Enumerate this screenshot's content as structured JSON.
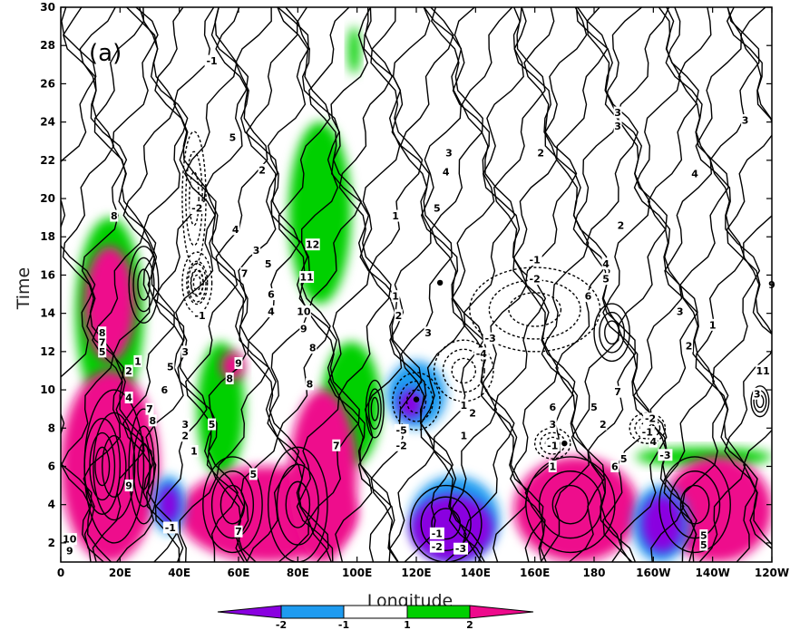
{
  "chart_data": {
    "type": "heatmap",
    "panel_label": "(a)",
    "xlabel": "Longitude",
    "ylabel": "Time",
    "x_ticks": [
      "0",
      "20E",
      "40E",
      "60E",
      "80E",
      "100E",
      "120E",
      "140E",
      "160E",
      "180",
      "160W",
      "140W",
      "120W"
    ],
    "x_tick_lon": [
      0,
      20,
      40,
      60,
      80,
      100,
      120,
      140,
      160,
      180,
      200,
      220,
      240
    ],
    "y_ticks": [
      "2",
      "4",
      "6",
      "8",
      "10",
      "12",
      "14",
      "16",
      "18",
      "20",
      "22",
      "24",
      "26",
      "28",
      "30"
    ],
    "y_tick_vals": [
      2,
      4,
      6,
      8,
      10,
      12,
      14,
      16,
      18,
      20,
      22,
      24,
      26,
      28,
      30
    ],
    "xlim": [
      0,
      240
    ],
    "ylim": [
      1,
      30
    ],
    "colorbar": {
      "labels": [
        "-2",
        "-1",
        "1",
        "2"
      ],
      "colors": [
        "#8a00e0",
        "#1e9bf0",
        "#ffffff",
        "#00d000",
        "#ee0a8c"
      ]
    },
    "shaded_regions": [
      {
        "class": "ge2",
        "lon": [
          0,
          33
        ],
        "time": [
          1,
          11
        ]
      },
      {
        "class": "ge2",
        "lon": [
          8,
          25
        ],
        "time": [
          11.5,
          17.5
        ]
      },
      {
        "class": "ge2",
        "lon": [
          40,
          100
        ],
        "time": [
          1,
          6
        ]
      },
      {
        "class": "ge2",
        "lon": [
          77,
          100
        ],
        "time": [
          1,
          10
        ]
      },
      {
        "class": "ge2",
        "lon": [
          153,
          195
        ],
        "time": [
          1,
          6.5
        ]
      },
      {
        "class": "ge2",
        "lon": [
          203,
          240
        ],
        "time": [
          1,
          6.5
        ]
      },
      {
        "class": "ge2",
        "lon": [
          54,
          62
        ],
        "time": [
          10.5,
          12
        ]
      },
      {
        "class": "ge1",
        "lon": [
          77,
          98
        ],
        "time": [
          14.5,
          24
        ]
      },
      {
        "class": "ge1",
        "lon": [
          88,
          108
        ],
        "time": [
          6,
          12.5
        ]
      },
      {
        "class": "ge1",
        "lon": [
          5,
          28
        ],
        "time": [
          9,
          19
        ]
      },
      {
        "class": "ge1",
        "lon": [
          46,
          62
        ],
        "time": [
          5.5,
          12.5
        ]
      },
      {
        "class": "ge1",
        "lon": [
          194,
          240
        ],
        "time": [
          6,
          7
        ]
      },
      {
        "class": "ge1",
        "lon": [
          97,
          101
        ],
        "time": [
          26.5,
          29
        ]
      },
      {
        "class": "le-1",
        "lon": [
          118,
          148
        ],
        "time": [
          1,
          5.5
        ]
      },
      {
        "class": "le-1",
        "lon": [
          110,
          130
        ],
        "time": [
          8,
          11.5
        ]
      },
      {
        "class": "le-1",
        "lon": [
          193,
          212
        ],
        "time": [
          1,
          5
        ]
      },
      {
        "class": "le-1",
        "lon": [
          31,
          42
        ],
        "time": [
          2.5,
          5.5
        ]
      },
      {
        "class": "le-2",
        "lon": [
          118,
          146
        ],
        "time": [
          1,
          4.5
        ]
      },
      {
        "class": "le-2",
        "lon": [
          114,
          122
        ],
        "time": [
          8.5,
          10
        ]
      },
      {
        "class": "le-2",
        "lon": [
          196,
          210
        ],
        "time": [
          1.5,
          4.5
        ]
      },
      {
        "class": "le-2",
        "lon": [
          33,
          40
        ],
        "time": [
          3,
          5
        ]
      }
    ],
    "contour_labels": [
      {
        "text": "-1",
        "lon": 51,
        "time": 27.2
      },
      {
        "text": "5",
        "lon": 58,
        "time": 23.2
      },
      {
        "text": "2",
        "lon": 68,
        "time": 21.5
      },
      {
        "text": "-2",
        "lon": 46,
        "time": 19.5
      },
      {
        "text": "4",
        "lon": 59,
        "time": 18.4
      },
      {
        "text": "-1",
        "lon": 47,
        "time": 13.9
      },
      {
        "text": "8",
        "lon": 18,
        "time": 19.1
      },
      {
        "text": "3",
        "lon": 66,
        "time": 17.3
      },
      {
        "text": "7",
        "lon": 62,
        "time": 16.1
      },
      {
        "text": "5",
        "lon": 70,
        "time": 16.6
      },
      {
        "text": "6",
        "lon": 71,
        "time": 15.0
      },
      {
        "text": "4",
        "lon": 71,
        "time": 14.1
      },
      {
        "text": "12",
        "lon": 85,
        "time": 17.6
      },
      {
        "text": "11",
        "lon": 83,
        "time": 15.9
      },
      {
        "text": "10",
        "lon": 82,
        "time": 14.1
      },
      {
        "text": "9",
        "lon": 82,
        "time": 13.2
      },
      {
        "text": "8",
        "lon": 85,
        "time": 12.2
      },
      {
        "text": "9",
        "lon": 60,
        "time": 11.4
      },
      {
        "text": "8",
        "lon": 57,
        "time": 10.6
      },
      {
        "text": "3",
        "lon": 42,
        "time": 12.0
      },
      {
        "text": "5",
        "lon": 37,
        "time": 11.2
      },
      {
        "text": "2",
        "lon": 23,
        "time": 11.0
      },
      {
        "text": "1",
        "lon": 26,
        "time": 11.5
      },
      {
        "text": "6",
        "lon": 35,
        "time": 10.0
      },
      {
        "text": "4",
        "lon": 23,
        "time": 9.6
      },
      {
        "text": "7",
        "lon": 30,
        "time": 9.0
      },
      {
        "text": "8",
        "lon": 31,
        "time": 8.4
      },
      {
        "text": "3",
        "lon": 42,
        "time": 8.2
      },
      {
        "text": "2",
        "lon": 42,
        "time": 7.6
      },
      {
        "text": "1",
        "lon": 45,
        "time": 6.8
      },
      {
        "text": "5",
        "lon": 51,
        "time": 8.2
      },
      {
        "text": "9",
        "lon": 23,
        "time": 5.0
      },
      {
        "text": "8",
        "lon": 84,
        "time": 10.3
      },
      {
        "text": "7",
        "lon": 93,
        "time": 7.1
      },
      {
        "text": "5",
        "lon": 65,
        "time": 5.6
      },
      {
        "text": "7",
        "lon": 60,
        "time": 2.6
      },
      {
        "text": "-1",
        "lon": 37,
        "time": 2.8
      },
      {
        "text": "10",
        "lon": 3,
        "time": 2.2
      },
      {
        "text": "9",
        "lon": 3,
        "time": 1.6
      },
      {
        "text": "8",
        "lon": 14,
        "time": 13.0
      },
      {
        "text": "7",
        "lon": 14,
        "time": 12.5
      },
      {
        "text": "5",
        "lon": 14,
        "time": 12.0
      },
      {
        "text": "3",
        "lon": 131,
        "time": 22.4
      },
      {
        "text": "4",
        "lon": 130,
        "time": 21.4
      },
      {
        "text": "5",
        "lon": 127,
        "time": 19.5
      },
      {
        "text": "1",
        "lon": 113,
        "time": 19.1
      },
      {
        "text": "1",
        "lon": 113,
        "time": 14.9
      },
      {
        "text": "2",
        "lon": 114,
        "time": 13.9
      },
      {
        "text": "3",
        "lon": 124,
        "time": 13.0
      },
      {
        "text": "2",
        "lon": 162,
        "time": 22.4
      },
      {
        "text": "3",
        "lon": 188,
        "time": 24.5
      },
      {
        "text": "3",
        "lon": 188,
        "time": 23.8
      },
      {
        "text": "3",
        "lon": 231,
        "time": 24.1
      },
      {
        "text": "4",
        "lon": 214,
        "time": 21.3
      },
      {
        "text": "2",
        "lon": 189,
        "time": 18.6
      },
      {
        "text": "-1",
        "lon": 160,
        "time": 16.8
      },
      {
        "text": "-2",
        "lon": 160,
        "time": 15.8
      },
      {
        "text": "4",
        "lon": 184,
        "time": 16.6
      },
      {
        "text": "5",
        "lon": 184,
        "time": 15.8
      },
      {
        "text": "6",
        "lon": 178,
        "time": 14.9
      },
      {
        "text": "3",
        "lon": 209,
        "time": 14.1
      },
      {
        "text": "1",
        "lon": 220,
        "time": 13.4
      },
      {
        "text": "2",
        "lon": 212,
        "time": 12.3
      },
      {
        "text": "9",
        "lon": 240,
        "time": 15.5
      },
      {
        "text": "-3",
        "lon": 145,
        "time": 12.7
      },
      {
        "text": "-4",
        "lon": 142,
        "time": 11.9
      },
      {
        "text": "1",
        "lon": 136,
        "time": 9.2
      },
      {
        "text": "2",
        "lon": 139,
        "time": 8.8
      },
      {
        "text": "-5",
        "lon": 115,
        "time": 7.9
      },
      {
        "text": "-2",
        "lon": 115,
        "time": 7.1
      },
      {
        "text": "1",
        "lon": 136,
        "time": 7.6
      },
      {
        "text": "6",
        "lon": 166,
        "time": 9.1
      },
      {
        "text": "3",
        "lon": 166,
        "time": 8.2
      },
      {
        "text": "7",
        "lon": 188,
        "time": 9.9
      },
      {
        "text": "5",
        "lon": 180,
        "time": 9.1
      },
      {
        "text": "2",
        "lon": 183,
        "time": 8.2
      },
      {
        "text": "-2",
        "lon": 199,
        "time": 8.5
      },
      {
        "text": "-1",
        "lon": 198,
        "time": 7.8
      },
      {
        "text": "-1",
        "lon": 166,
        "time": 7.1
      },
      {
        "text": "4",
        "lon": 200,
        "time": 7.3
      },
      {
        "text": "1",
        "lon": 166,
        "time": 6.0
      },
      {
        "text": "6",
        "lon": 187,
        "time": 6.0
      },
      {
        "text": "5",
        "lon": 190,
        "time": 6.4
      },
      {
        "text": "-3",
        "lon": 204,
        "time": 6.6
      },
      {
        "text": "11",
        "lon": 237,
        "time": 11.0
      },
      {
        "text": "3",
        "lon": 235,
        "time": 9.8
      },
      {
        "text": "-1",
        "lon": 127,
        "time": 2.5
      },
      {
        "text": "-2",
        "lon": 127,
        "time": 1.8
      },
      {
        "text": "-3",
        "lon": 135,
        "time": 1.7
      },
      {
        "text": "5",
        "lon": 217,
        "time": 2.4
      },
      {
        "text": "5",
        "lon": 217,
        "time": 1.9
      }
    ],
    "max_markers": [
      {
        "lon": 120,
        "time": 9.5
      },
      {
        "lon": 128,
        "time": 15.6
      },
      {
        "lon": 170,
        "time": 7.2
      }
    ]
  }
}
